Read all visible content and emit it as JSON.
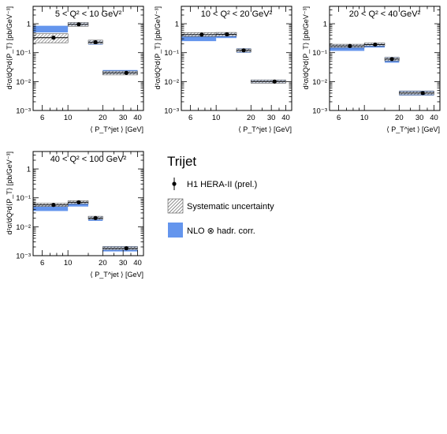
{
  "colors": {
    "nlo_band": "#6495ED",
    "sys_hatch": "#555555",
    "frame": "#000000",
    "marker": "#000000"
  },
  "legend": {
    "title": "Trijet",
    "entries": [
      {
        "label": "H1 HERA-II (prel.)",
        "kind": "data-point"
      },
      {
        "label": "Systematic uncertainty",
        "kind": "hatched-box"
      },
      {
        "label": "NLO ⊗ hadr. corr.",
        "kind": "blue-box"
      }
    ]
  },
  "chart_data": [
    {
      "type": "scatter",
      "title": "5 < Q² <  10 GeV²",
      "xlabel": "⟨ P_T^jet ⟩ [GeV]",
      "ylabel": "d²σ/dQ²d⟨P_T⟩ [pb/GeV⁻³]",
      "x_scale": "log",
      "y_scale": "log",
      "xlim": [
        5,
        45
      ],
      "ylim": [
        0.001,
        4
      ],
      "x_ticks": [
        6,
        10,
        20,
        30,
        40
      ],
      "y_ticks": [
        0.001,
        0.01,
        0.1,
        1
      ],
      "y_tick_labels": [
        "10⁻³",
        "10⁻²",
        "10⁻¹",
        "1"
      ],
      "bins": [
        [
          5,
          10
        ],
        [
          10,
          15
        ],
        [
          15,
          20
        ],
        [
          20,
          40
        ]
      ],
      "series": [
        {
          "name": "H1 HERA-II (prel.)",
          "x": [
            7.5,
            12.4,
            17.3,
            32
          ],
          "y": [
            0.33,
            0.95,
            0.23,
            0.02
          ],
          "sys_lo": [
            0.22,
            0.82,
            0.2,
            0.017
          ],
          "sys_hi": [
            0.45,
            1.1,
            0.27,
            0.023
          ]
        },
        {
          "name": "NLO ⊗ hadr. corr.",
          "lo": [
            0.5,
            0.85,
            0.19,
            0.018
          ],
          "hi": [
            0.85,
            1.1,
            0.26,
            0.025
          ]
        }
      ]
    },
    {
      "type": "scatter",
      "title": "10 < Q² <  20 GeV²",
      "xlabel": "⟨ P_T^jet ⟩ [GeV]",
      "ylabel": "d²σ/dQ²d⟨P_T⟩ [pb/GeV⁻³]",
      "x_scale": "log",
      "y_scale": "log",
      "xlim": [
        5,
        45
      ],
      "ylim": [
        0.001,
        4
      ],
      "x_ticks": [
        6,
        10,
        20,
        30,
        40
      ],
      "y_ticks": [
        0.001,
        0.01,
        0.1,
        1
      ],
      "y_tick_labels": [
        "10⁻³",
        "10⁻²",
        "10⁻¹",
        "1"
      ],
      "bins": [
        [
          5,
          10
        ],
        [
          10,
          15
        ],
        [
          15,
          20
        ],
        [
          20,
          40
        ]
      ],
      "series": [
        {
          "name": "H1 HERA-II (prel.)",
          "x": [
            7.5,
            12.4,
            17.3,
            32
          ],
          "y": [
            0.42,
            0.43,
            0.12,
            0.01
          ],
          "sys_lo": [
            0.36,
            0.37,
            0.105,
            0.0088
          ],
          "sys_hi": [
            0.49,
            0.5,
            0.135,
            0.0113
          ]
        },
        {
          "name": "NLO ⊗ hadr. corr.",
          "lo": [
            0.25,
            0.32,
            0.1,
            0.0088
          ],
          "hi": [
            0.45,
            0.48,
            0.14,
            0.0115
          ]
        }
      ]
    },
    {
      "type": "scatter",
      "title": "20 < Q² <  40 GeV²",
      "xlabel": "⟨ P_T^jet ⟩ [GeV]",
      "ylabel": "d²σ/dQ²d⟨P_T⟩ [pb/GeV⁻³]",
      "x_scale": "log",
      "y_scale": "log",
      "xlim": [
        5,
        45
      ],
      "ylim": [
        0.001,
        4
      ],
      "x_ticks": [
        6,
        10,
        20,
        30,
        40
      ],
      "y_ticks": [
        0.001,
        0.01,
        0.1,
        1
      ],
      "y_tick_labels": [
        "10⁻³",
        "10⁻²",
        "10⁻¹",
        "1"
      ],
      "bins": [
        [
          5,
          10
        ],
        [
          10,
          15
        ],
        [
          15,
          20
        ],
        [
          20,
          40
        ]
      ],
      "series": [
        {
          "name": "H1 HERA-II (prel.)",
          "x": [
            7.5,
            12.4,
            17.3,
            32
          ],
          "y": [
            0.17,
            0.19,
            0.06,
            0.004
          ],
          "sys_lo": [
            0.15,
            0.17,
            0.052,
            0.0035
          ],
          "sys_hi": [
            0.195,
            0.215,
            0.068,
            0.0046
          ]
        },
        {
          "name": "NLO ⊗ hadr. corr.",
          "lo": [
            0.115,
            0.15,
            0.045,
            0.0033
          ],
          "hi": [
            0.19,
            0.21,
            0.07,
            0.0048
          ]
        }
      ]
    },
    {
      "type": "scatter",
      "title": "40 < Q² < 100 GeV²",
      "xlabel": "⟨ P_T^jet ⟩ [GeV]",
      "ylabel": "d²σ/dQ²d⟨P_T⟩ [pb/GeV⁻³]",
      "x_scale": "log",
      "y_scale": "log",
      "xlim": [
        5,
        45
      ],
      "ylim": [
        0.001,
        4
      ],
      "x_ticks": [
        6,
        10,
        20,
        30,
        40
      ],
      "y_ticks": [
        0.001,
        0.01,
        0.1,
        1
      ],
      "y_tick_labels": [
        "10⁻³",
        "10⁻²",
        "10⁻¹",
        "1"
      ],
      "bins": [
        [
          5,
          10
        ],
        [
          10,
          15
        ],
        [
          15,
          20
        ],
        [
          20,
          40
        ]
      ],
      "series": [
        {
          "name": "H1 HERA-II (prel.)",
          "x": [
            7.5,
            12.4,
            17.3,
            32
          ],
          "y": [
            0.057,
            0.07,
            0.02,
            0.0018
          ],
          "sys_lo": [
            0.05,
            0.062,
            0.018,
            0.0016
          ],
          "sys_hi": [
            0.065,
            0.079,
            0.023,
            0.00205
          ]
        },
        {
          "name": "NLO ⊗ hadr. corr.",
          "lo": [
            0.035,
            0.05,
            0.016,
            0.0014
          ],
          "hi": [
            0.06,
            0.075,
            0.023,
            0.0021
          ]
        }
      ]
    }
  ]
}
